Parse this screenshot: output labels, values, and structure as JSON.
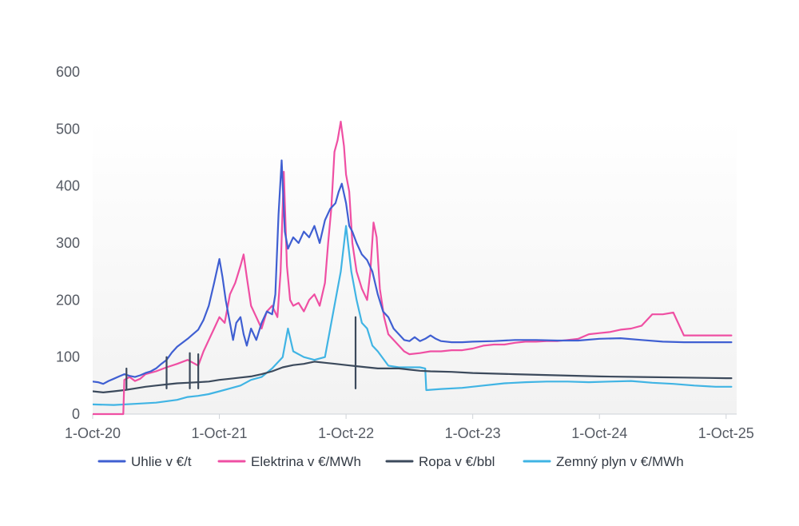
{
  "chart_data": {
    "type": "line",
    "title": "",
    "xlabel": "",
    "ylabel": "",
    "ylim": [
      0,
      600
    ],
    "yticks": [
      0,
      100,
      200,
      300,
      400,
      500,
      600
    ],
    "xlim": [
      0,
      61
    ],
    "x_unit": "months since 1-Oct-20",
    "xticks": [
      {
        "label": "1-Oct-20",
        "x": 0
      },
      {
        "label": "1-Oct-21",
        "x": 12
      },
      {
        "label": "1-Oct-22",
        "x": 24
      },
      {
        "label": "1-Oct-23",
        "x": 36
      },
      {
        "label": "1-Oct-24",
        "x": 48
      },
      {
        "label": "1-Oct-25",
        "x": 60
      }
    ],
    "series": [
      {
        "name": "Uhlie v €/t",
        "color": "#3f5fd2",
        "points": [
          [
            0,
            57
          ],
          [
            0.5,
            56
          ],
          [
            1,
            53
          ],
          [
            1.5,
            58
          ],
          [
            2,
            62
          ],
          [
            2.5,
            66
          ],
          [
            3,
            70
          ],
          [
            3.5,
            67
          ],
          [
            4,
            65
          ],
          [
            4.5,
            68
          ],
          [
            5,
            72
          ],
          [
            5.5,
            75
          ],
          [
            6,
            80
          ],
          [
            6.5,
            88
          ],
          [
            7,
            95
          ],
          [
            7.5,
            108
          ],
          [
            8,
            118
          ],
          [
            8.5,
            125
          ],
          [
            9,
            132
          ],
          [
            9.5,
            140
          ],
          [
            10,
            148
          ],
          [
            10.5,
            165
          ],
          [
            11,
            190
          ],
          [
            11.5,
            230
          ],
          [
            12,
            272
          ],
          [
            12.3,
            240
          ],
          [
            12.6,
            200
          ],
          [
            13,
            160
          ],
          [
            13.3,
            130
          ],
          [
            13.6,
            160
          ],
          [
            14,
            170
          ],
          [
            14.3,
            140
          ],
          [
            14.6,
            120
          ],
          [
            15,
            150
          ],
          [
            15.5,
            130
          ],
          [
            16,
            160
          ],
          [
            16.5,
            180
          ],
          [
            17,
            175
          ],
          [
            17.3,
            210
          ],
          [
            17.6,
            350
          ],
          [
            17.9,
            445
          ],
          [
            18.2,
            320
          ],
          [
            18.5,
            290
          ],
          [
            19,
            310
          ],
          [
            19.5,
            300
          ],
          [
            20,
            320
          ],
          [
            20.5,
            310
          ],
          [
            21,
            330
          ],
          [
            21.5,
            300
          ],
          [
            22,
            340
          ],
          [
            22.5,
            360
          ],
          [
            23,
            370
          ],
          [
            23.3,
            390
          ],
          [
            23.6,
            404
          ],
          [
            24,
            370
          ],
          [
            24.3,
            330
          ],
          [
            24.6,
            320
          ],
          [
            25,
            300
          ],
          [
            25.5,
            280
          ],
          [
            26,
            270
          ],
          [
            26.5,
            250
          ],
          [
            27,
            210
          ],
          [
            27.5,
            180
          ],
          [
            28,
            170
          ],
          [
            28.5,
            150
          ],
          [
            29,
            140
          ],
          [
            29.5,
            130
          ],
          [
            30,
            128
          ],
          [
            30.5,
            135
          ],
          [
            31,
            128
          ],
          [
            31.5,
            132
          ],
          [
            32,
            138
          ],
          [
            32.5,
            132
          ],
          [
            33,
            128
          ],
          [
            34,
            126
          ],
          [
            35,
            126
          ],
          [
            36,
            127
          ],
          [
            38,
            128
          ],
          [
            40,
            130
          ],
          [
            42,
            130
          ],
          [
            44,
            129
          ],
          [
            46,
            129
          ],
          [
            48,
            132
          ],
          [
            50,
            133
          ],
          [
            52,
            130
          ],
          [
            54,
            127
          ],
          [
            56,
            126
          ],
          [
            58,
            126
          ],
          [
            60,
            126
          ],
          [
            60.5,
            126
          ]
        ]
      },
      {
        "name": "Elektrina v €/MWh",
        "color": "#ef4fa3",
        "points": [
          [
            0,
            0
          ],
          [
            2.9,
            0
          ],
          [
            3,
            60
          ],
          [
            3.5,
            65
          ],
          [
            4,
            58
          ],
          [
            4.5,
            62
          ],
          [
            5,
            70
          ],
          [
            6,
            75
          ],
          [
            7,
            82
          ],
          [
            8,
            88
          ],
          [
            9,
            95
          ],
          [
            9.5,
            90
          ],
          [
            10,
            85
          ],
          [
            10.5,
            110
          ],
          [
            11,
            130
          ],
          [
            11.5,
            150
          ],
          [
            12,
            170
          ],
          [
            12.5,
            160
          ],
          [
            13,
            210
          ],
          [
            13.5,
            230
          ],
          [
            14,
            260
          ],
          [
            14.3,
            280
          ],
          [
            14.6,
            240
          ],
          [
            15,
            190
          ],
          [
            15.5,
            170
          ],
          [
            16,
            150
          ],
          [
            16.5,
            180
          ],
          [
            17,
            190
          ],
          [
            17.5,
            170
          ],
          [
            17.8,
            250
          ],
          [
            18.1,
            425
          ],
          [
            18.4,
            260
          ],
          [
            18.7,
            200
          ],
          [
            19,
            190
          ],
          [
            19.5,
            195
          ],
          [
            20,
            180
          ],
          [
            20.5,
            200
          ],
          [
            21,
            210
          ],
          [
            21.5,
            190
          ],
          [
            22,
            230
          ],
          [
            22.3,
            300
          ],
          [
            22.6,
            360
          ],
          [
            22.9,
            460
          ],
          [
            23.2,
            480
          ],
          [
            23.5,
            513
          ],
          [
            23.8,
            470
          ],
          [
            24,
            420
          ],
          [
            24.3,
            390
          ],
          [
            24.6,
            300
          ],
          [
            25,
            250
          ],
          [
            25.5,
            220
          ],
          [
            26,
            200
          ],
          [
            26.3,
            250
          ],
          [
            26.6,
            336
          ],
          [
            26.9,
            310
          ],
          [
            27.2,
            220
          ],
          [
            27.6,
            170
          ],
          [
            28,
            140
          ],
          [
            28.5,
            130
          ],
          [
            29,
            120
          ],
          [
            29.5,
            110
          ],
          [
            30,
            105
          ],
          [
            31,
            107
          ],
          [
            32,
            110
          ],
          [
            33,
            110
          ],
          [
            34,
            112
          ],
          [
            35,
            112
          ],
          [
            36,
            115
          ],
          [
            37,
            120
          ],
          [
            38,
            122
          ],
          [
            39,
            122
          ],
          [
            40,
            125
          ],
          [
            41,
            127
          ],
          [
            42,
            127
          ],
          [
            43,
            128
          ],
          [
            44,
            128
          ],
          [
            45,
            130
          ],
          [
            46,
            132
          ],
          [
            47,
            140
          ],
          [
            48,
            142
          ],
          [
            49,
            144
          ],
          [
            50,
            148
          ],
          [
            51,
            150
          ],
          [
            52,
            155
          ],
          [
            53,
            175
          ],
          [
            54,
            175
          ],
          [
            55,
            178
          ],
          [
            56,
            138
          ],
          [
            57,
            138
          ],
          [
            58,
            138
          ],
          [
            59,
            138
          ],
          [
            60,
            138
          ],
          [
            60.5,
            138
          ]
        ]
      },
      {
        "name": "Ropa v €/bbl",
        "color": "#3c4a5c",
        "points": [
          [
            0,
            40
          ],
          [
            1,
            38
          ],
          [
            2,
            40
          ],
          [
            3,
            42
          ],
          [
            4,
            45
          ],
          [
            5,
            48
          ],
          [
            6,
            50
          ],
          [
            7,
            52
          ],
          [
            8,
            54
          ],
          [
            9,
            55
          ],
          [
            10,
            56
          ],
          [
            11,
            57
          ],
          [
            12,
            60
          ],
          [
            13,
            62
          ],
          [
            14,
            64
          ],
          [
            15,
            66
          ],
          [
            16,
            70
          ],
          [
            17,
            75
          ],
          [
            18,
            82
          ],
          [
            19,
            86
          ],
          [
            20,
            88
          ],
          [
            21,
            92
          ],
          [
            22,
            90
          ],
          [
            23,
            88
          ],
          [
            24,
            86
          ],
          [
            25,
            84
          ],
          [
            26,
            82
          ],
          [
            27,
            80
          ],
          [
            28,
            80
          ],
          [
            29,
            80
          ],
          [
            30,
            78
          ],
          [
            31,
            76
          ],
          [
            32,
            75
          ],
          [
            34,
            74
          ],
          [
            36,
            72
          ],
          [
            40,
            70
          ],
          [
            44,
            68
          ],
          [
            48,
            66
          ],
          [
            52,
            65
          ],
          [
            56,
            64
          ],
          [
            60,
            63
          ],
          [
            60.5,
            63
          ]
        ]
      },
      {
        "name": "Zemný plyn v €/MWh",
        "color": "#40b4e4",
        "points": [
          [
            0,
            17
          ],
          [
            2,
            16
          ],
          [
            4,
            18
          ],
          [
            6,
            20
          ],
          [
            8,
            25
          ],
          [
            9,
            30
          ],
          [
            10,
            32
          ],
          [
            11,
            35
          ],
          [
            12,
            40
          ],
          [
            13,
            45
          ],
          [
            14,
            50
          ],
          [
            15,
            60
          ],
          [
            16,
            65
          ],
          [
            17,
            80
          ],
          [
            18,
            100
          ],
          [
            18.5,
            150
          ],
          [
            19,
            110
          ],
          [
            20,
            100
          ],
          [
            21,
            95
          ],
          [
            22,
            100
          ],
          [
            22.5,
            150
          ],
          [
            23,
            200
          ],
          [
            23.5,
            250
          ],
          [
            24,
            330
          ],
          [
            24.5,
            250
          ],
          [
            25,
            200
          ],
          [
            25.5,
            160
          ],
          [
            26,
            150
          ],
          [
            26.5,
            120
          ],
          [
            27,
            110
          ],
          [
            28,
            85
          ],
          [
            29,
            82
          ],
          [
            30,
            82
          ],
          [
            31,
            82
          ],
          [
            31.5,
            80
          ],
          [
            31.6,
            42
          ],
          [
            33,
            44
          ],
          [
            35,
            46
          ],
          [
            37,
            50
          ],
          [
            39,
            54
          ],
          [
            41,
            56
          ],
          [
            43,
            57
          ],
          [
            45,
            57
          ],
          [
            47,
            56
          ],
          [
            49,
            57
          ],
          [
            51,
            58
          ],
          [
            53,
            55
          ],
          [
            55,
            53
          ],
          [
            57,
            50
          ],
          [
            59,
            48
          ],
          [
            60,
            48
          ],
          [
            60.5,
            48
          ]
        ]
      }
    ],
    "spikes": {
      "series": "Ropa v €/bbl",
      "points": [
        [
          3.2,
          80
        ],
        [
          7,
          100
        ],
        [
          9.2,
          107
        ],
        [
          10,
          105
        ],
        [
          24.9,
          170
        ]
      ]
    },
    "legend": "bottom"
  },
  "legend_items": [
    {
      "label": "Uhlie v €/t",
      "color": "#3f5fd2"
    },
    {
      "label": "Elektrina v €/MWh",
      "color": "#ef4fa3"
    },
    {
      "label": "Ropa v €/bbl",
      "color": "#3c4a5c"
    },
    {
      "label": "Zemný plyn v €/MWh",
      "color": "#40b4e4"
    }
  ]
}
